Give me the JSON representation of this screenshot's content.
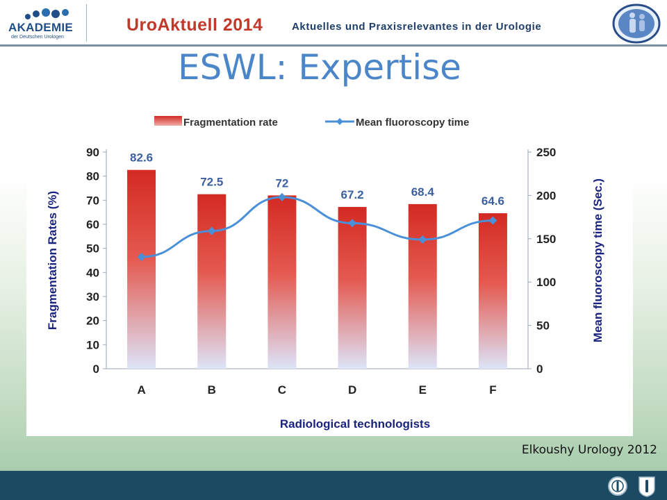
{
  "header": {
    "org_name": "AKADEMIE",
    "org_sub": "der Deutschen Urologen",
    "conference": "UroAktuell 2014",
    "subtitle": "Aktuelles und Praxisrelevantes in der Urologie",
    "accent_color": "#c0392b",
    "subtitle_color": "#1e3e6a"
  },
  "slide": {
    "title": "ESWL: Expertise",
    "title_color": "#4a86c8",
    "citation": "Elkoushy Urology 2012"
  },
  "footer": {
    "color": "#1c4a63",
    "icons": [
      "seal-icon",
      "shield-icon"
    ]
  },
  "chart_data": {
    "type": "bar+line",
    "categories": [
      "A",
      "B",
      "C",
      "D",
      "E",
      "F"
    ],
    "series": [
      {
        "name": "Fragmentation rate",
        "type": "bar",
        "axis": "left",
        "values": [
          82.6,
          72.5,
          72,
          67.2,
          68.4,
          64.6
        ],
        "labels": [
          "82.6",
          "72.5",
          "72",
          "67.2",
          "68.4",
          "64.6"
        ],
        "color": "#d32a22"
      },
      {
        "name": "Mean fluoroscopy time",
        "type": "line",
        "axis": "right",
        "values": [
          129,
          159,
          198,
          168,
          149,
          171
        ],
        "color": "#4a90d9"
      }
    ],
    "xlabel": "Radiological technologists",
    "ylabel": "Fragmentation Rates (%)",
    "y2label": "Mean fluoroscopy time (Sec.)",
    "ylim": [
      0,
      90
    ],
    "y2lim": [
      0,
      250
    ],
    "yticks": [
      0,
      10,
      20,
      30,
      40,
      50,
      60,
      70,
      80,
      90
    ],
    "y2ticks": [
      0,
      50,
      100,
      150,
      200,
      250
    ],
    "legend": "top",
    "grid": false
  }
}
